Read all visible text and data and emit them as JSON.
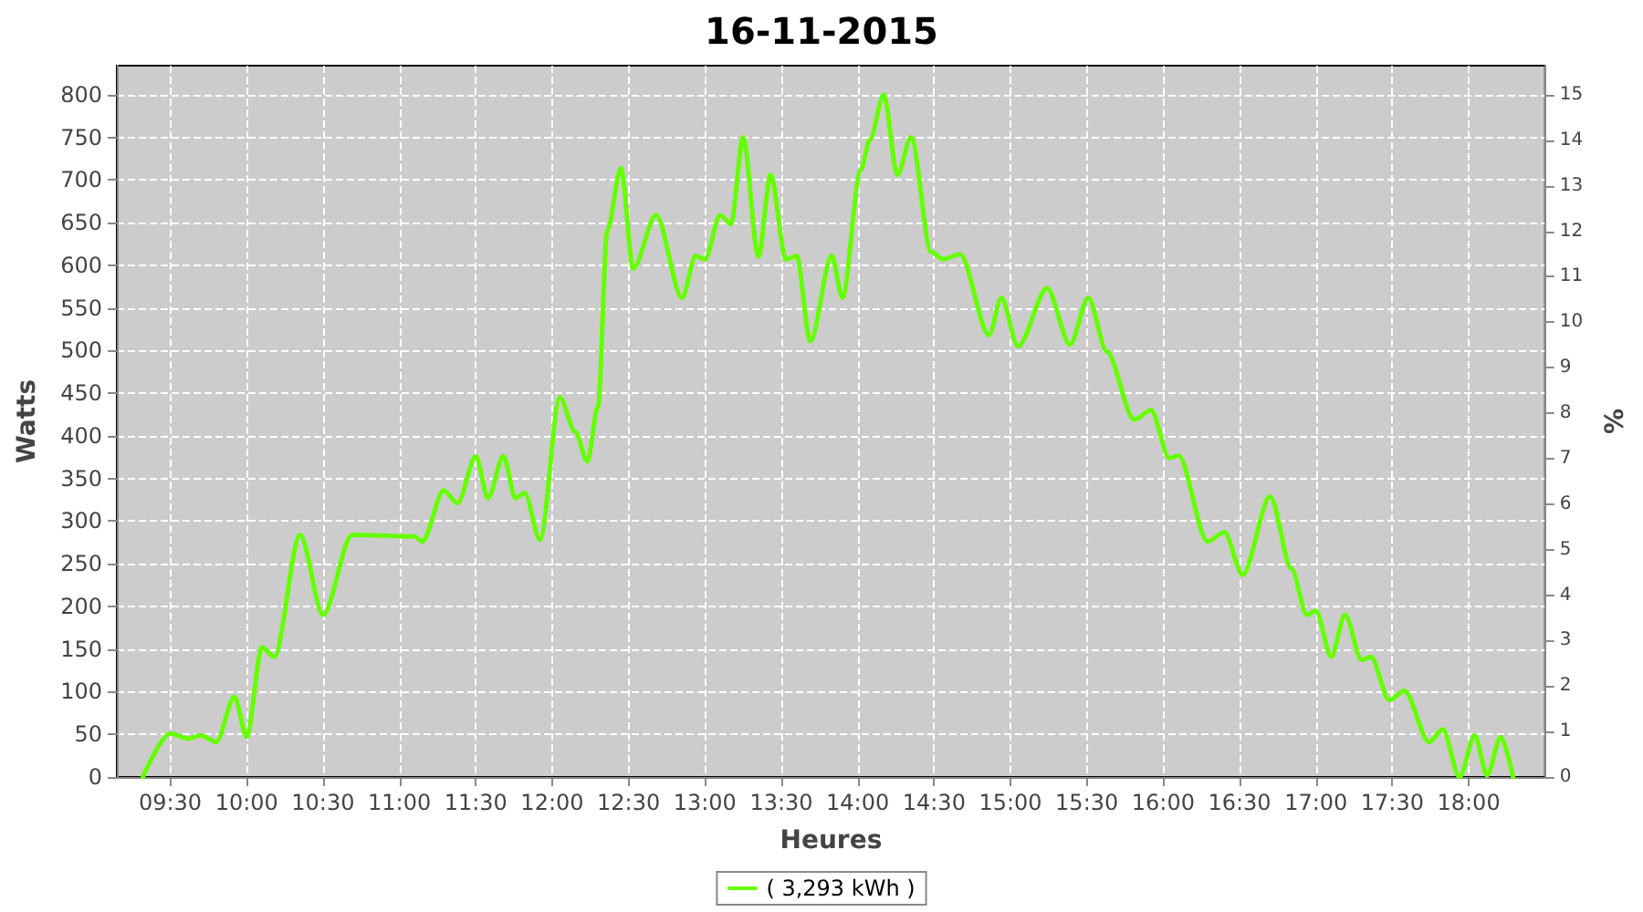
{
  "chart_data": {
    "type": "line",
    "title": "16-11-2015",
    "xlabel": "Heures",
    "ylabel": "Watts",
    "y2label": "%",
    "xlim": [
      9.15,
      18.5
    ],
    "ylim": [
      0,
      834
    ],
    "y2lim": [
      0,
      15.64
    ],
    "xticks": [
      {
        "value": 9.5,
        "label": "09:30"
      },
      {
        "value": 10,
        "label": "10:00"
      },
      {
        "value": 10.5,
        "label": "10:30"
      },
      {
        "value": 11,
        "label": "11:00"
      },
      {
        "value": 11.5,
        "label": "11:30"
      },
      {
        "value": 12,
        "label": "12:00"
      },
      {
        "value": 12.5,
        "label": "12:30"
      },
      {
        "value": 13,
        "label": "13:00"
      },
      {
        "value": 13.5,
        "label": "13:30"
      },
      {
        "value": 14,
        "label": "14:00"
      },
      {
        "value": 14.5,
        "label": "14:30"
      },
      {
        "value": 15,
        "label": "15:00"
      },
      {
        "value": 15.5,
        "label": "15:30"
      },
      {
        "value": 16,
        "label": "16:00"
      },
      {
        "value": 16.5,
        "label": "16:30"
      },
      {
        "value": 17,
        "label": "17:00"
      },
      {
        "value": 17.5,
        "label": "17:30"
      },
      {
        "value": 18,
        "label": "18:00"
      }
    ],
    "yticks": [
      0,
      50,
      100,
      150,
      200,
      250,
      300,
      350,
      400,
      450,
      500,
      550,
      600,
      650,
      700,
      750,
      800
    ],
    "y2ticks": [
      0,
      1,
      2,
      3,
      4,
      5,
      6,
      7,
      8,
      9,
      10,
      11,
      12,
      13,
      14,
      15
    ],
    "grid": true,
    "legend": "bottom",
    "marker": "none",
    "line_style": "solid",
    "series": [
      {
        "name": "( 3,293 kWh )",
        "color": "#66ff00",
        "x": [
          9.32,
          9.5,
          9.62,
          9.7,
          9.8,
          9.92,
          10.0,
          10.1,
          10.18,
          10.35,
          10.5,
          10.69,
          11.1,
          11.15,
          11.29,
          11.38,
          11.5,
          11.58,
          11.68,
          11.76,
          11.82,
          11.92,
          12.05,
          12.15,
          12.23,
          12.3,
          12.36,
          12.45,
          12.53,
          12.68,
          12.85,
          12.94,
          13.0,
          13.1,
          13.17,
          13.25,
          13.35,
          13.43,
          13.53,
          13.6,
          13.69,
          13.83,
          13.9,
          14.02,
          14.08,
          14.17,
          14.26,
          14.35,
          14.48,
          14.56,
          14.67,
          14.86,
          14.94,
          15.05,
          15.24,
          15.39,
          15.51,
          15.63,
          15.81,
          15.92,
          16.04,
          16.1,
          16.29,
          16.4,
          16.52,
          16.7,
          16.84,
          16.94,
          17.0,
          17.1,
          17.19,
          17.3,
          17.36,
          17.48,
          17.58,
          17.74,
          17.83,
          17.94,
          18.04,
          18.12,
          18.21,
          18.29
        ],
        "values": [
          0,
          51,
          45,
          49,
          41,
          94,
          47,
          152,
          141,
          284,
          190,
          284,
          282,
          276,
          336,
          321,
          376,
          327,
          376,
          327,
          333,
          278,
          445,
          405,
          370,
          434,
          640,
          714,
          596,
          659,
          562,
          611,
          607,
          659,
          648,
          750,
          610,
          706,
          607,
          611,
          511,
          611,
          562,
          712,
          747,
          800,
          706,
          750,
          616,
          607,
          613,
          518,
          562,
          505,
          573,
          507,
          562,
          499,
          419,
          430,
          374,
          377,
          276,
          287,
          237,
          329,
          244,
          190,
          195,
          141,
          190,
          137,
          141,
          90,
          101,
          41,
          56,
          0,
          49,
          2,
          47,
          0
        ]
      }
    ]
  }
}
